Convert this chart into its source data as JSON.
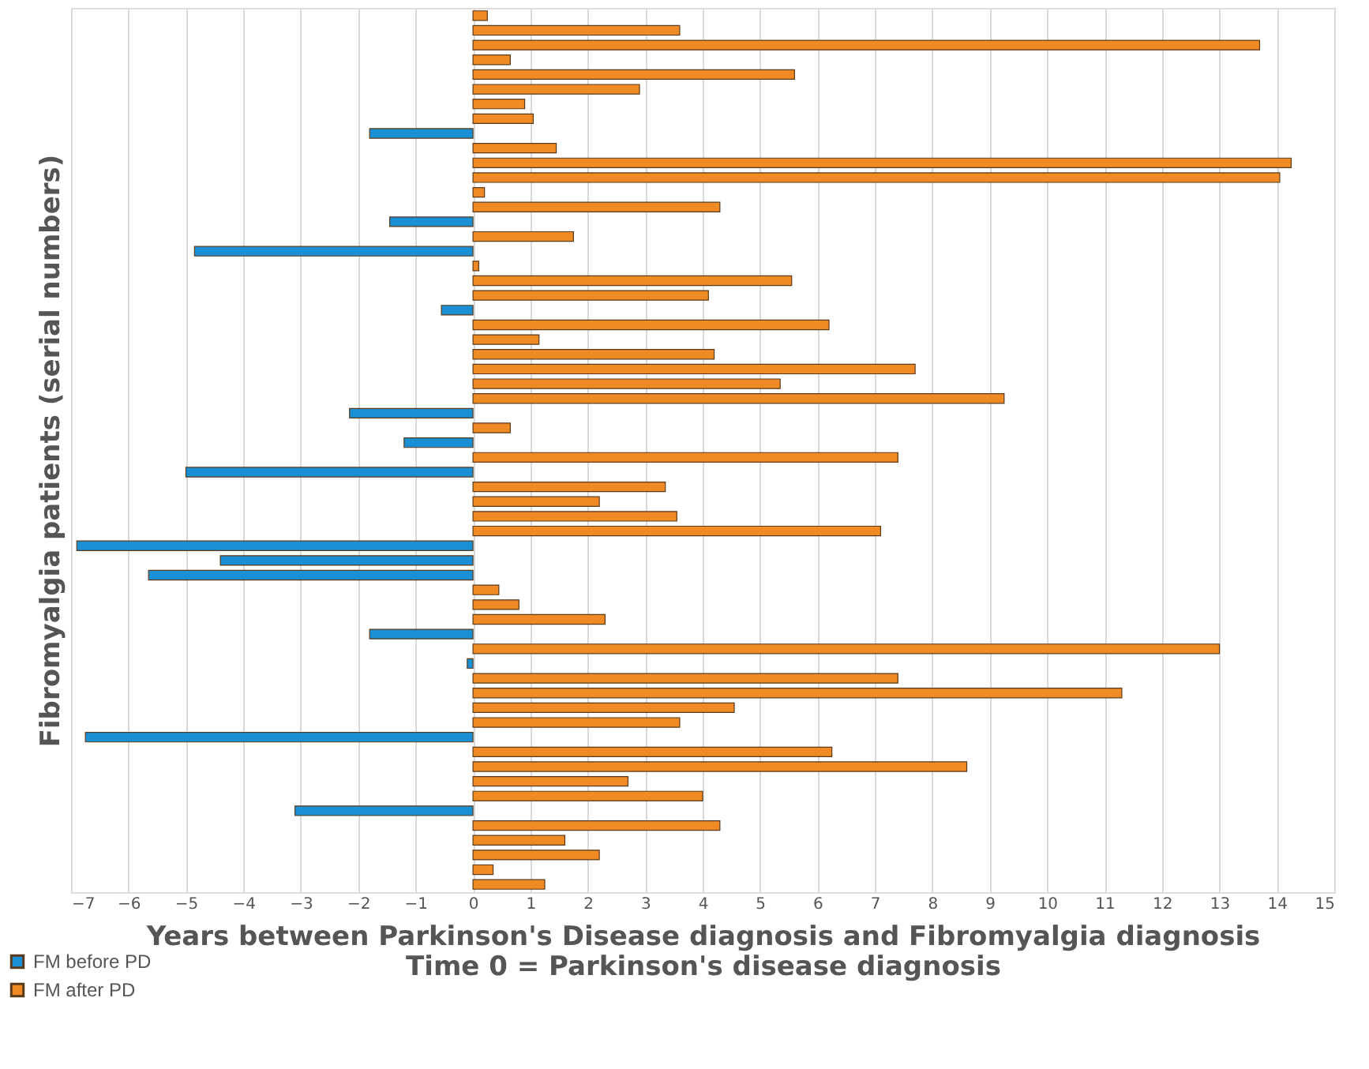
{
  "chart_data": {
    "type": "bar",
    "orientation": "horizontal",
    "xlabel": "Years between Parkinson's  Disease diagnosis  and Fibromyalgia  diagnosis",
    "ylabel": "Fibromyalgia  patients (serial numbers)",
    "annotations": [
      "Time 0 = Parkinson's  disease diagnosis"
    ],
    "categories": [
      null,
      null,
      null,
      null,
      null,
      null,
      null,
      null,
      null,
      null,
      null,
      null,
      null,
      null,
      null,
      null,
      null,
      null,
      null,
      null,
      null,
      null,
      null,
      null,
      null,
      null,
      null,
      null,
      null,
      null,
      null,
      null,
      null,
      null,
      null,
      null,
      null,
      null,
      null,
      null,
      null,
      null,
      null,
      null,
      null,
      null,
      null,
      null,
      null,
      null,
      null,
      null,
      null,
      null,
      null,
      null,
      null,
      null,
      null,
      null
    ],
    "series": [
      {
        "name": "FM before PD",
        "color": "#1a8fd3",
        "values": [
          null,
          null,
          null,
          null,
          null,
          null,
          null,
          null,
          -1.8,
          null,
          null,
          null,
          null,
          null,
          -1.45,
          null,
          -4.85,
          null,
          null,
          null,
          -0.55,
          null,
          null,
          null,
          null,
          null,
          null,
          -2.15,
          null,
          -1.2,
          null,
          -5.0,
          null,
          null,
          null,
          null,
          -6.9,
          -4.4,
          -5.65,
          null,
          null,
          null,
          -1.8,
          null,
          -0.1,
          null,
          null,
          null,
          null,
          -6.75,
          null,
          null,
          null,
          null,
          -3.1,
          null,
          null,
          null,
          null,
          null
        ]
      },
      {
        "name": "FM after PD",
        "color": "#f08a24",
        "values": [
          0.25,
          3.6,
          13.7,
          0.65,
          5.6,
          2.9,
          0.9,
          1.05,
          null,
          1.45,
          14.25,
          14.05,
          0.2,
          4.3,
          null,
          1.75,
          null,
          0.1,
          5.55,
          4.1,
          null,
          6.2,
          1.15,
          4.2,
          7.7,
          5.35,
          9.25,
          null,
          0.65,
          null,
          7.4,
          null,
          3.35,
          2.2,
          3.55,
          7.1,
          null,
          null,
          null,
          0.45,
          0.8,
          2.3,
          null,
          13.0,
          null,
          7.4,
          11.3,
          4.55,
          3.6,
          null,
          6.25,
          8.6,
          2.7,
          4.0,
          null,
          4.3,
          1.6,
          2.2,
          0.35,
          1.25
        ]
      }
    ],
    "xlim": [
      -7,
      15
    ],
    "xticks": [
      -7,
      -6,
      -5,
      -4,
      -3,
      -2,
      -1,
      0,
      1,
      2,
      3,
      4,
      5,
      6,
      7,
      8,
      9,
      10,
      11,
      12,
      13,
      14,
      15
    ],
    "grid": "x",
    "legend": "bottom left",
    "tick_labels": "x"
  }
}
